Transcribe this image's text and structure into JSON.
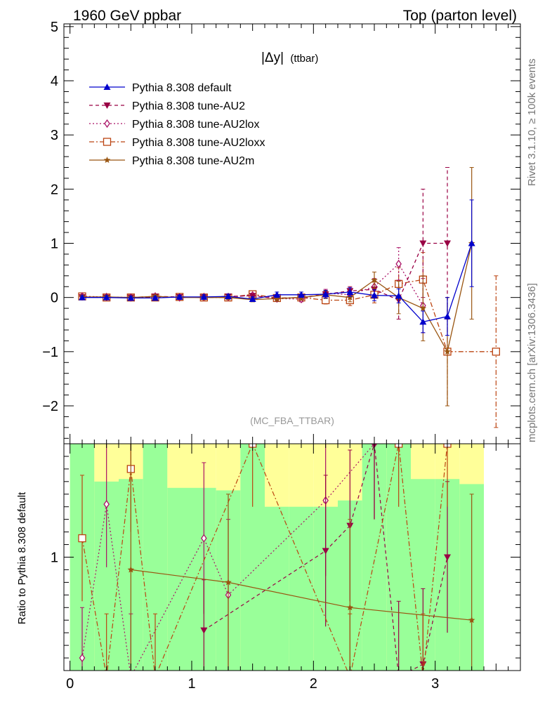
{
  "header": {
    "left": "1960 GeV ppbar",
    "right": "Top (parton level)"
  },
  "side_labels": {
    "rivet": "Rivet 3.1.10, ≥ 100k events",
    "mcplots": "mcplots.cern.ch [arXiv:1306.3436]"
  },
  "analysis_tag": "(MC_FBA_TTBAR)",
  "title_main": "|Δy|",
  "title_sub": "(ttbar)",
  "ratio_ylabel": "Ratio to Pythia 8.308 default",
  "colors": {
    "default": "#0000cc",
    "au2": "#990044",
    "au2lox": "#aa1166",
    "au2loxx": "#bb4411",
    "au2m": "#995511",
    "band_green": "#99ff99",
    "band_yellow": "#ffff99"
  },
  "chart_data": {
    "type": "line",
    "x_ticks": [
      "0",
      "1",
      "2",
      "3"
    ],
    "y_ticks_main": [
      "−2",
      "−1",
      "0",
      "1",
      "2",
      "3",
      "4",
      "5"
    ],
    "y_ticks_ratio": [
      "1"
    ],
    "xlim": [
      -0.05,
      3.7
    ],
    "ylim_main": [
      -2.7,
      5.05
    ],
    "ylim_ratio": [
      0.1,
      1.9
    ],
    "x": [
      0.1,
      0.3,
      0.5,
      0.7,
      0.9,
      1.1,
      1.3,
      1.5,
      1.7,
      1.9,
      2.1,
      2.3,
      2.5,
      2.7,
      2.9,
      3.1,
      3.3,
      3.5
    ],
    "legend_position": "top-left",
    "series": [
      {
        "name": "Pythia 8.308 default",
        "key": "default",
        "marker": "triangle-up",
        "dash": "",
        "values": [
          0.0,
          0.0,
          -0.01,
          -0.01,
          0.01,
          0.01,
          0.02,
          -0.03,
          0.05,
          0.05,
          0.06,
          0.1,
          0.04,
          0.03,
          -0.45,
          -0.35,
          1.0,
          null
        ],
        "errors": [
          0.03,
          0.03,
          0.03,
          0.03,
          0.03,
          0.04,
          0.04,
          0.04,
          0.05,
          0.05,
          0.07,
          0.08,
          0.1,
          0.13,
          0.2,
          0.35,
          0.8,
          null
        ]
      },
      {
        "name": "Pythia 8.308 tune-AU2",
        "key": "au2",
        "marker": "triangle-down",
        "dash": "5,4",
        "values": [
          0.01,
          0.0,
          0.0,
          0.02,
          0.01,
          0.0,
          0.02,
          0.03,
          -0.02,
          0.0,
          0.06,
          0.12,
          0.15,
          -0.05,
          1.0,
          1.0,
          null,
          null
        ],
        "errors": [
          0.03,
          0.03,
          0.03,
          0.03,
          0.03,
          0.04,
          0.04,
          0.04,
          0.05,
          0.05,
          0.07,
          0.08,
          0.15,
          0.35,
          1.0,
          1.4,
          null,
          null
        ]
      },
      {
        "name": "Pythia 8.308 tune-AU2lox",
        "key": "au2lox",
        "marker": "diamond-open",
        "dash": "2,3",
        "values": [
          0.02,
          0.01,
          0.0,
          0.02,
          0.0,
          0.01,
          0.01,
          0.04,
          -0.02,
          -0.03,
          0.08,
          0.05,
          0.2,
          0.62,
          -0.15,
          null,
          null,
          null
        ],
        "errors": [
          0.03,
          0.03,
          0.03,
          0.03,
          0.03,
          0.04,
          0.04,
          0.04,
          0.05,
          0.05,
          0.07,
          0.08,
          0.15,
          0.3,
          0.5,
          null,
          null,
          null
        ]
      },
      {
        "name": "Pythia 8.308 tune-AU2loxx",
        "key": "au2loxx",
        "marker": "square-open",
        "dash": "7,3,2,3",
        "values": [
          0.02,
          0.0,
          0.0,
          0.0,
          0.01,
          0.0,
          0.0,
          0.06,
          -0.01,
          0.0,
          -0.05,
          -0.05,
          0.05,
          0.25,
          0.33,
          -1.0,
          null,
          -1.0
        ],
        "errors": [
          0.03,
          0.03,
          0.03,
          0.03,
          0.03,
          0.04,
          0.04,
          0.04,
          0.05,
          0.05,
          0.07,
          0.1,
          0.15,
          0.3,
          0.5,
          1.0,
          null,
          1.4
        ]
      },
      {
        "name": "Pythia 8.308 tune-AU2m",
        "key": "au2m",
        "marker": "star",
        "dash": "",
        "values": [
          0.01,
          0.01,
          0.0,
          0.02,
          0.0,
          0.0,
          0.0,
          -0.04,
          -0.02,
          0.0,
          0.05,
          0.0,
          0.32,
          0.0,
          -0.2,
          -1.0,
          1.0,
          null
        ],
        "errors": [
          0.03,
          0.03,
          0.03,
          0.03,
          0.03,
          0.04,
          0.04,
          0.04,
          0.05,
          0.05,
          0.07,
          0.08,
          0.15,
          0.3,
          0.6,
          1.0,
          1.4,
          null
        ]
      }
    ],
    "ratio_band": {
      "x_edges": [
        0.0,
        0.2,
        0.4,
        0.6,
        0.8,
        1.0,
        1.2,
        1.4,
        1.6,
        1.8,
        2.0,
        2.2,
        2.4,
        2.6,
        2.8,
        3.0,
        3.2,
        3.4
      ],
      "green_upper": [
        1.9,
        1.6,
        1.62,
        1.9,
        1.55,
        1.55,
        1.53,
        1.9,
        1.4,
        1.4,
        1.4,
        1.45,
        1.9,
        1.9,
        1.62,
        1.62,
        1.58
      ],
      "green_lower": [
        0.1,
        0.1,
        0.1,
        0.1,
        0.1,
        0.1,
        0.1,
        0.1,
        0.1,
        0.1,
        0.1,
        0.1,
        0.1,
        0.1,
        0.1,
        0.1,
        0.1
      ],
      "yellow_upper": [
        1.9,
        1.9,
        1.9,
        1.9,
        1.9,
        1.9,
        1.9,
        1.9,
        1.9,
        1.9,
        1.9,
        1.9,
        1.9,
        1.9,
        1.9,
        1.9,
        1.9
      ],
      "yellow_lower": [
        0.1,
        0.1,
        0.1,
        0.1,
        0.1,
        0.1,
        0.1,
        0.1,
        0.1,
        0.1,
        0.1,
        0.1,
        0.1,
        0.1,
        0.1,
        0.1,
        0.1
      ]
    },
    "ratio_series": [
      {
        "key": "au2lox",
        "marker": "diamond-open",
        "dash": "2,3",
        "points": [
          [
            0.1,
            0.2
          ],
          [
            0.3,
            1.42
          ],
          [
            0.5,
            0.05
          ],
          [
            1.1,
            1.15
          ],
          [
            1.3,
            0.7
          ],
          [
            2.1,
            1.45
          ],
          [
            2.5,
            1.9
          ]
        ],
        "err": [
          0.4,
          0.5,
          0.5,
          0.6,
          0.6,
          0.6,
          0.6
        ]
      },
      {
        "key": "au2",
        "marker": "triangle-down",
        "dash": "5,4",
        "points": [
          [
            1.1,
            0.42
          ],
          [
            2.1,
            1.05
          ],
          [
            2.3,
            1.25
          ],
          [
            2.5,
            1.9
          ],
          [
            2.7,
            0.05
          ],
          [
            2.9,
            0.15
          ],
          [
            3.1,
            1.0
          ]
        ],
        "err": [
          0.4,
          0.6,
          0.6,
          0.6,
          0.6,
          0.6,
          0.6
        ]
      },
      {
        "key": "au2loxx",
        "marker": "square-open",
        "dash": "7,3,2,3",
        "points": [
          [
            0.1,
            1.15
          ],
          [
            0.3,
            0.05
          ],
          [
            0.5,
            1.7
          ],
          [
            0.7,
            0.05
          ],
          [
            1.5,
            1.9
          ],
          [
            2.3,
            0.05
          ],
          [
            2.7,
            1.9
          ],
          [
            2.9,
            0.05
          ],
          [
            3.1,
            1.9
          ]
        ],
        "err": [
          0.5,
          0.5,
          0.5,
          0.5,
          0.5,
          0.5,
          0.5,
          0.5,
          0.5
        ]
      },
      {
        "key": "au2m",
        "marker": "star",
        "dash": "",
        "points": [
          [
            0.5,
            0.9
          ],
          [
            1.3,
            0.8
          ],
          [
            2.3,
            0.6
          ],
          [
            3.3,
            0.5
          ]
        ],
        "err": [
          1.0,
          0.7,
          0.7,
          1.0
        ]
      }
    ]
  }
}
